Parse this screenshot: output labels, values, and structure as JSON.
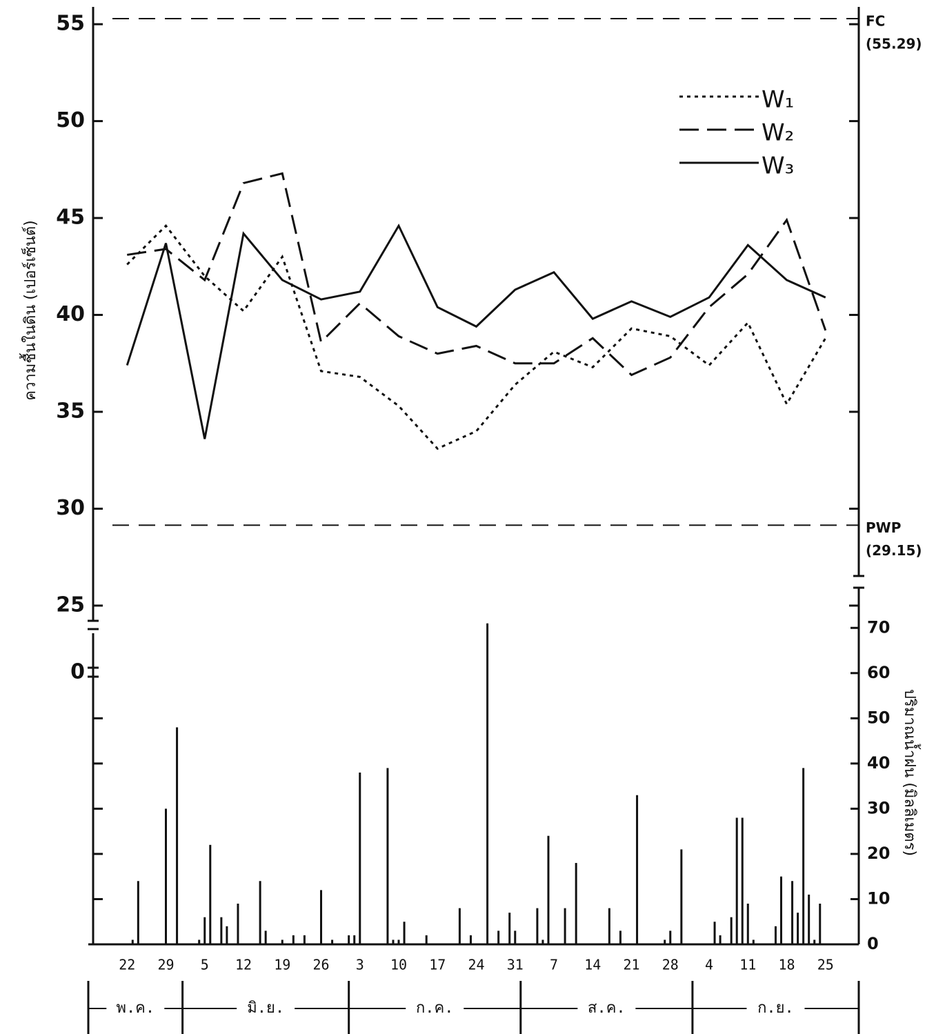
{
  "chart_data": {
    "type": "line",
    "y_label": "ความชื้นในดิน (เปอร์เซ็นต์)",
    "y2_label": "ปริมาณน้ำฝน (มิลลิเมตร)",
    "xlim": [
      -7,
      132
    ],
    "xticks": [
      {
        "value": 0,
        "label": "22"
      },
      {
        "value": 7,
        "label": "29"
      },
      {
        "value": 14,
        "label": "5"
      },
      {
        "value": 21,
        "label": "12"
      },
      {
        "value": 28,
        "label": "19"
      },
      {
        "value": 35,
        "label": "26"
      },
      {
        "value": 42,
        "label": "3"
      },
      {
        "value": 49,
        "label": "10"
      },
      {
        "value": 56,
        "label": "17"
      },
      {
        "value": 63,
        "label": "24"
      },
      {
        "value": 70,
        "label": "31"
      },
      {
        "value": 77,
        "label": "7"
      },
      {
        "value": 84,
        "label": "14"
      },
      {
        "value": 91,
        "label": "21"
      },
      {
        "value": 98,
        "label": "28"
      },
      {
        "value": 105,
        "label": "4"
      },
      {
        "value": 112,
        "label": "11"
      },
      {
        "value": 119,
        "label": "18"
      },
      {
        "value": 126,
        "label": "25"
      }
    ],
    "months": [
      "พ.ค.",
      "มิ.ย.",
      "ก.ค.",
      "ส.ค.",
      "ก.ย."
    ],
    "month_ticks": [
      -7,
      10,
      40,
      71,
      102,
      132
    ],
    "ylim": [
      24.5,
      56
    ],
    "yticks": [
      25,
      30,
      35,
      40,
      45,
      50,
      55
    ],
    "y_break_tick": 0,
    "y2lim": [
      0,
      79.5
    ],
    "y2ticks": [
      0,
      10,
      20,
      30,
      40,
      50,
      60,
      70
    ],
    "reference_lines": [
      {
        "label": "FC",
        "value": 55.29,
        "value_label": "(55.29)"
      },
      {
        "label": "PWP",
        "value": 29.15,
        "value_label": "(29.15)"
      }
    ],
    "x": [
      0,
      7,
      14,
      21,
      28,
      35,
      42,
      49,
      56,
      63,
      70,
      77,
      84,
      91,
      98,
      105,
      112,
      119,
      126
    ],
    "series": [
      {
        "name": "W₁",
        "color": "#111111",
        "line_style": "dotted",
        "values": [
          42.6,
          44.6,
          42.0,
          40.2,
          43.0,
          37.1,
          36.8,
          35.3,
          33.1,
          34.0,
          36.4,
          38.1,
          37.3,
          39.3,
          38.9,
          37.4,
          39.6,
          35.4,
          38.8
        ]
      },
      {
        "name": "W₂",
        "color": "#111111",
        "line_style": "dashed",
        "values": [
          43.1,
          43.4,
          41.8,
          46.8,
          47.3,
          38.6,
          40.6,
          38.9,
          38.0,
          38.4,
          37.5,
          37.5,
          38.8,
          36.9,
          37.8,
          40.4,
          42.1,
          44.9,
          39.2
        ]
      },
      {
        "name": "W₃",
        "color": "#111111",
        "line_style": "solid",
        "values": [
          37.4,
          43.7,
          33.6,
          44.2,
          41.8,
          40.8,
          41.2,
          44.6,
          40.4,
          39.4,
          41.3,
          42.2,
          39.8,
          40.7,
          39.9,
          40.9,
          43.6,
          41.8,
          40.9
        ]
      }
    ],
    "rain": {
      "color": "#111111",
      "axis": "y2",
      "x": [
        1,
        2,
        7,
        9,
        13,
        14,
        15,
        17,
        18,
        20,
        24,
        25,
        28,
        30,
        32,
        35,
        37,
        40,
        41,
        42,
        47,
        48,
        49,
        50,
        54,
        60,
        62,
        65,
        67,
        69,
        70,
        74,
        75,
        76,
        79,
        81,
        87,
        89,
        92,
        97,
        98,
        100,
        106,
        107,
        109,
        110,
        111,
        112,
        113,
        117,
        118,
        120,
        121,
        122,
        123,
        124,
        125
      ],
      "values": [
        1,
        14,
        30,
        48,
        1,
        6,
        22,
        6,
        4,
        9,
        14,
        3,
        1,
        2,
        2,
        12,
        1,
        2,
        2,
        38,
        39,
        1,
        1,
        5,
        2,
        8,
        2,
        71,
        3,
        7,
        3,
        8,
        1,
        24,
        8,
        18,
        8,
        3,
        33,
        1,
        3,
        21,
        5,
        2,
        6,
        28,
        28,
        9,
        1,
        4,
        15,
        14,
        7,
        39,
        11,
        1,
        9
      ]
    }
  }
}
